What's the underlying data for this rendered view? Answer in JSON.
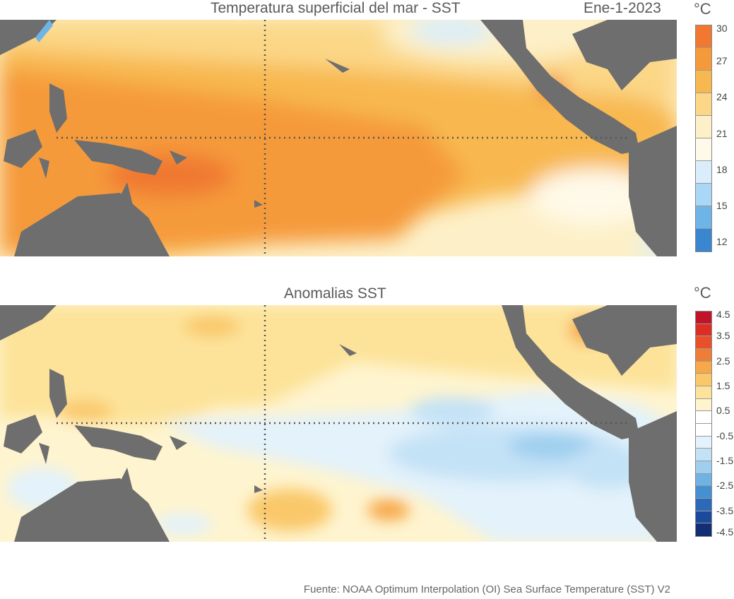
{
  "top": {
    "title": "Temperatura superficial del mar - SST",
    "date": "Ene-1-2023",
    "unit": "°C",
    "colorbar": {
      "ticks": [
        "30",
        "27",
        "24",
        "21",
        "18",
        "15",
        "12"
      ],
      "colors": [
        "#f07830",
        "#f59a3a",
        "#f8b850",
        "#fbd787",
        "#fdf0c8",
        "#fef9e8",
        "#d9eefa",
        "#a9d7f5",
        "#6fb4e6",
        "#3a86cf"
      ]
    }
  },
  "bottom": {
    "title": "Anomalias SST",
    "unit": "°C",
    "colorbar": {
      "ticks": [
        "4.5",
        "3.5",
        "2.5",
        "1.5",
        "0.5",
        "-0.5",
        "-1.5",
        "-2.5",
        "-3.5",
        "-4.5"
      ],
      "colors": [
        "#c0142a",
        "#dc2e22",
        "#e9502a",
        "#f07d36",
        "#f7a848",
        "#fac869",
        "#fde39a",
        "#fef4cf",
        "#ffffff",
        "#ffffff",
        "#e3f2fb",
        "#c4e2f6",
        "#9fcfef",
        "#6fb2e4",
        "#4690d1",
        "#2b6ab8",
        "#1b4a9c",
        "#142e74"
      ]
    }
  },
  "source": "Fuente: NOAA Optimum Interpolation (OI) Sea Surface Temperature (SST) V2",
  "colors": {
    "land": "#6e6e6e",
    "gridline": "#555555"
  }
}
